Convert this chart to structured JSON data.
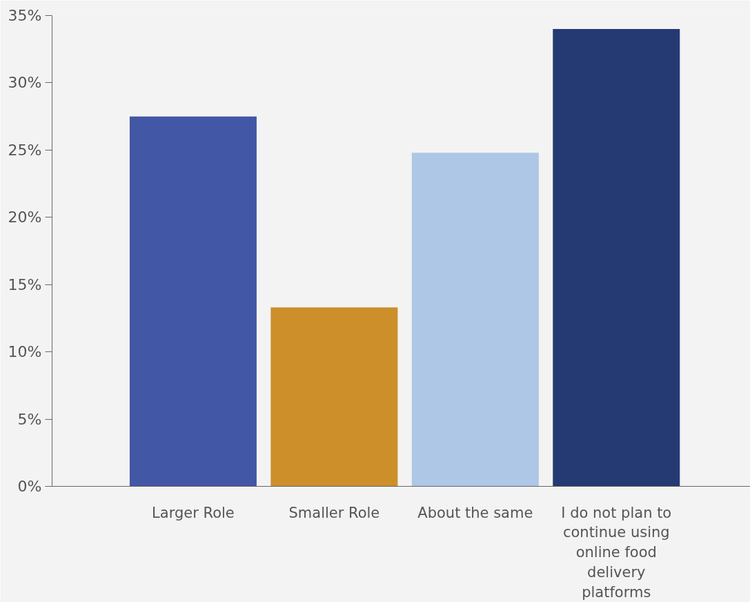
{
  "chart_data": {
    "type": "bar",
    "categories": [
      "Larger Role",
      "Smaller Role",
      "About the same",
      "I do not plan to continue using online food delivery platforms"
    ],
    "values": [
      27.5,
      13.3,
      24.8,
      34.0
    ],
    "colors": [
      "#4257a5",
      "#cc8f2a",
      "#aec7e7",
      "#253a73"
    ],
    "ylim": [
      0,
      35
    ],
    "yticks": [
      {
        "value": 0,
        "label": "0%"
      },
      {
        "value": 5,
        "label": "5%"
      },
      {
        "value": 10,
        "label": "10%"
      },
      {
        "value": 15,
        "label": "15%"
      },
      {
        "value": 20,
        "label": "20%"
      },
      {
        "value": 25,
        "label": "25%"
      },
      {
        "value": 30,
        "label": "30%"
      },
      {
        "value": 35,
        "label": "35%"
      }
    ],
    "grid": false
  }
}
